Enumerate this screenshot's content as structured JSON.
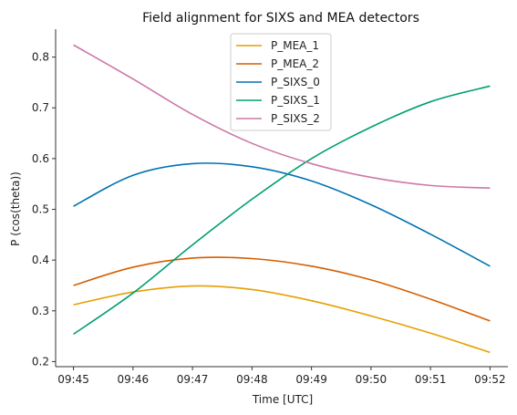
{
  "chart_data": {
    "type": "line",
    "title": "Field alignment for SIXS and MEA detectors",
    "xlabel": "Time [UTC]",
    "ylabel": "P (cos(theta))",
    "x_ticks": [
      "09:45",
      "09:46",
      "09:47",
      "09:48",
      "09:49",
      "09:50",
      "09:51",
      "09:52"
    ],
    "x_minutes": [
      0,
      1,
      2,
      3,
      4,
      5,
      6,
      7
    ],
    "y_ticks": [
      "0.2",
      "0.3",
      "0.4",
      "0.5",
      "0.6",
      "0.7",
      "0.8"
    ],
    "xlim": [
      -0.3,
      7.3
    ],
    "ylim": [
      0.19,
      0.855
    ],
    "legend_position": "top-center",
    "grid": false,
    "series": [
      {
        "name": "P_MEA_1",
        "color": "#E69F00",
        "values": [
          0.312,
          0.337,
          0.349,
          0.342,
          0.32,
          0.29,
          0.256,
          0.218
        ]
      },
      {
        "name": "P_MEA_2",
        "color": "#D55E00",
        "values": [
          0.35,
          0.386,
          0.404,
          0.403,
          0.388,
          0.361,
          0.323,
          0.28
        ]
      },
      {
        "name": "P_SIXS_0",
        "color": "#0072B2",
        "values": [
          0.506,
          0.567,
          0.59,
          0.584,
          0.556,
          0.509,
          0.451,
          0.388
        ]
      },
      {
        "name": "P_SIXS_1",
        "color": "#009E73",
        "values": [
          0.254,
          0.335,
          0.43,
          0.52,
          0.6,
          0.662,
          0.712,
          0.743
        ]
      },
      {
        "name": "P_SIXS_2",
        "color": "#CC79A7",
        "values": [
          0.824,
          0.757,
          0.687,
          0.63,
          0.59,
          0.563,
          0.547,
          0.542
        ]
      }
    ]
  }
}
